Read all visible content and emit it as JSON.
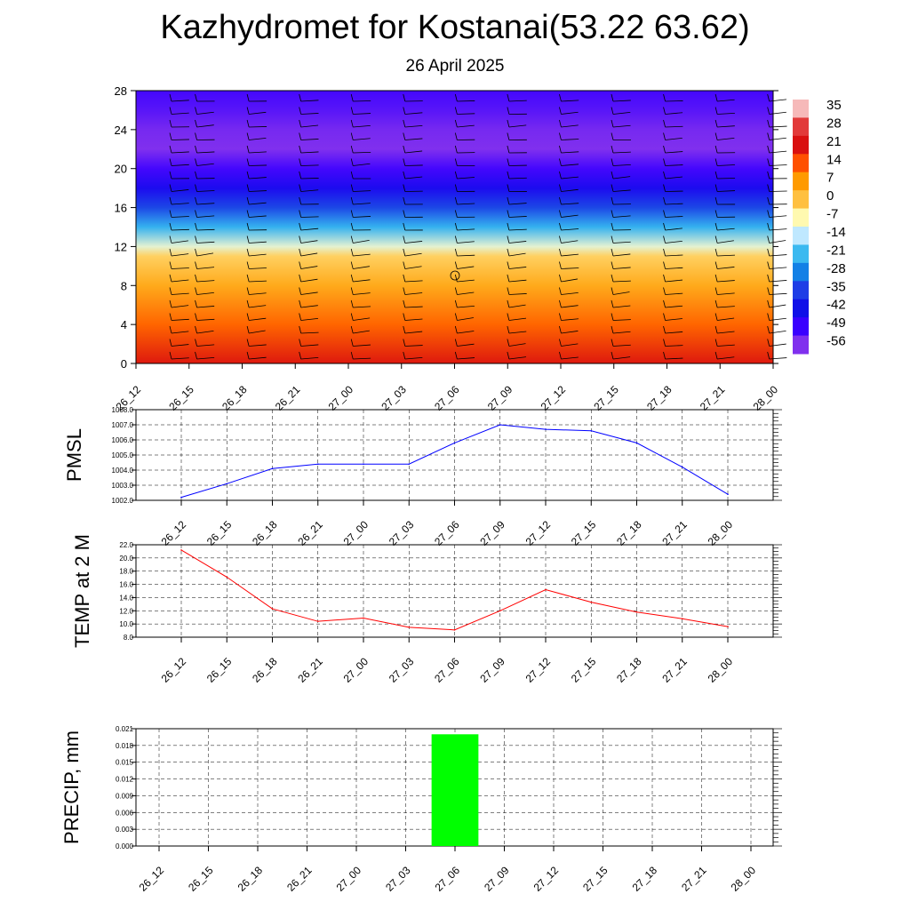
{
  "header": {
    "title": "Kazhydromet for Kostanai(53.22 63.62)",
    "subtitle": "26 April 2025"
  },
  "time_labels": [
    "26_12",
    "26_15",
    "26_18",
    "26_21",
    "27_00",
    "27_03",
    "27_06",
    "27_09",
    "27_12",
    "27_15",
    "27_18",
    "27_21",
    "28_00"
  ],
  "colors": {
    "pmsl_line": "#0000ff",
    "temp_line": "#ff0000",
    "precip_bar": "#00ff00",
    "grid": "#000000"
  },
  "chart_data": [
    {
      "type": "heatmap",
      "title": "Kazhydromet for Kostanai(53.22 63.62)",
      "subtitle": "26 April 2025",
      "x": [
        "26_12",
        "26_15",
        "26_18",
        "26_21",
        "27_00",
        "27_03",
        "27_06",
        "27_09",
        "27_12",
        "27_15",
        "27_18",
        "27_21",
        "28_00"
      ],
      "y_ticks": [
        0,
        4,
        8,
        12,
        16,
        20,
        24,
        28
      ],
      "ylim": [
        0,
        28
      ],
      "colorbar_labels": [
        "35",
        "28",
        "21",
        "14",
        "7",
        "0",
        "-7",
        "-14",
        "-21",
        "-28",
        "-35",
        "-42",
        "-49",
        "-56"
      ],
      "colorbar_colors": [
        "#f6b9b9",
        "#e23a3a",
        "#d91010",
        "#ff5000",
        "#ff9a00",
        "#ffc040",
        "#fff9b0",
        "#bfe8ff",
        "#3bb9f0",
        "#1380e6",
        "#1e3de6",
        "#1010e8",
        "#3a00ff",
        "#8030ee"
      ],
      "temperature_profile": [
        {
          "y": 0,
          "value": 20
        },
        {
          "y": 4,
          "value": 12
        },
        {
          "y": 8,
          "value": 4
        },
        {
          "y": 11,
          "value": -2
        },
        {
          "y": 12,
          "value": -10
        },
        {
          "y": 14,
          "value": -22
        },
        {
          "y": 16,
          "value": -34
        },
        {
          "y": 18,
          "value": -44
        },
        {
          "y": 20,
          "value": -50
        },
        {
          "y": 22,
          "value": -56
        },
        {
          "y": 24,
          "value": -55
        },
        {
          "y": 26,
          "value": -52
        },
        {
          "y": 28,
          "value": -50
        }
      ],
      "grid": false
    },
    {
      "type": "line",
      "ylabel": "PMSL",
      "categories": [
        "26_12",
        "26_15",
        "26_18",
        "26_21",
        "27_00",
        "27_03",
        "27_06",
        "27_09",
        "27_12",
        "27_15",
        "27_18",
        "27_21",
        "28_00"
      ],
      "series": [
        {
          "values": [
            1002.2,
            1003.1,
            1004.1,
            1004.4,
            1004.4,
            1004.4,
            1005.8,
            1007.0,
            1006.7,
            1006.6,
            1005.8,
            1004.2,
            1002.4
          ]
        }
      ],
      "ylim": [
        1002.0,
        1008.0
      ],
      "y_ticks": [
        "1002.0",
        "1003.0",
        "1004.0",
        "1005.0",
        "1006.0",
        "1007.0",
        "1008.0"
      ],
      "grid": true
    },
    {
      "type": "line",
      "ylabel": "TEMP at 2 M",
      "categories": [
        "26_12",
        "26_15",
        "26_18",
        "26_21",
        "27_00",
        "27_03",
        "27_06",
        "27_09",
        "27_12",
        "27_15",
        "27_18",
        "27_21",
        "28_00"
      ],
      "series": [
        {
          "values": [
            21.2,
            17.1,
            12.3,
            10.4,
            10.9,
            9.5,
            9.1,
            12.0,
            15.2,
            13.3,
            11.8,
            10.8,
            9.6
          ]
        }
      ],
      "ylim": [
        8.0,
        22.0
      ],
      "y_ticks": [
        "8.0",
        "10.0",
        "12.0",
        "14.0",
        "16.0",
        "18.0",
        "20.0",
        "22.0"
      ],
      "grid": true
    },
    {
      "type": "bar",
      "ylabel": "PRECIP, mm",
      "categories": [
        "26_12",
        "26_15",
        "26_18",
        "26_21",
        "27_00",
        "27_03",
        "27_06",
        "27_09",
        "27_12",
        "27_15",
        "27_18",
        "27_21",
        "28_00"
      ],
      "values": [
        0,
        0,
        0,
        0,
        0,
        0,
        0.02,
        0,
        0,
        0,
        0,
        0,
        0
      ],
      "ylim": [
        0,
        0.021
      ],
      "y_ticks": [
        "0.000",
        "0.003",
        "0.006",
        "0.009",
        "0.012",
        "0.015",
        "0.018",
        "0.021"
      ],
      "grid": true
    }
  ]
}
